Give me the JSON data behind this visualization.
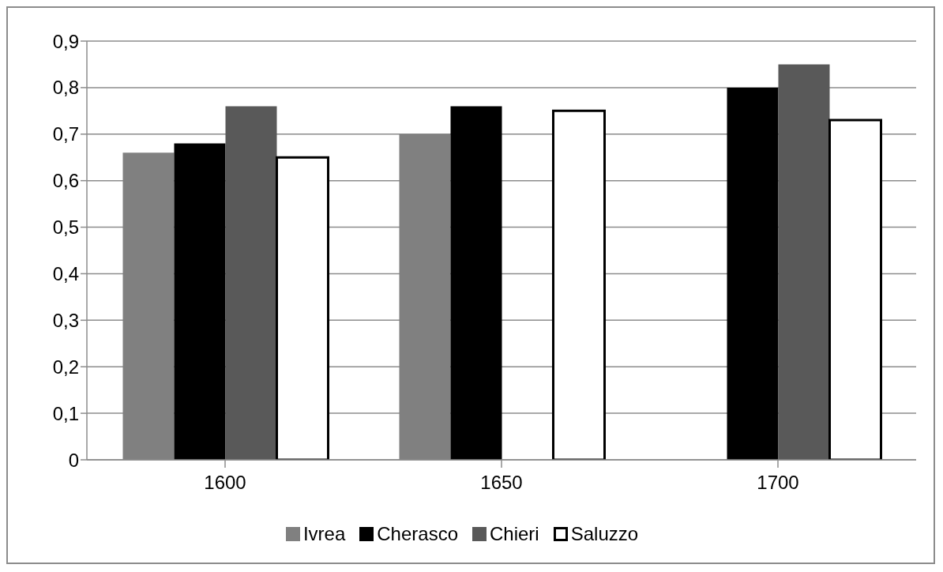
{
  "chart_data": {
    "type": "bar",
    "categories": [
      "1600",
      "1650",
      "1700"
    ],
    "series": [
      {
        "name": "Ivrea",
        "color": "#808080",
        "values": [
          0.66,
          0.7,
          null
        ]
      },
      {
        "name": "Cherasco",
        "color": "#000000",
        "values": [
          0.68,
          0.76,
          0.8
        ]
      },
      {
        "name": "Chieri",
        "color": "#595959",
        "values": [
          0.76,
          null,
          0.85
        ]
      },
      {
        "name": "Saluzzo",
        "color": "#ffffff",
        "values": [
          0.65,
          0.75,
          0.73
        ]
      }
    ],
    "ylim": [
      0,
      0.9
    ],
    "yticks": [
      0,
      {
        "value": 0.1,
        "label": "0,1"
      },
      {
        "value": 0.2,
        "label": "0,2"
      },
      {
        "value": 0.3,
        "label": "0,3"
      },
      {
        "value": 0.4,
        "label": "0,4"
      },
      {
        "value": 0.5,
        "label": "0,5"
      },
      {
        "value": 0.6,
        "label": "0,6"
      },
      {
        "value": 0.7,
        "label": "0,7"
      },
      {
        "value": 0.8,
        "label": "0,8"
      },
      {
        "value": 0.9,
        "label": "0,9"
      }
    ],
    "grid": "y",
    "legend": "bottom"
  }
}
